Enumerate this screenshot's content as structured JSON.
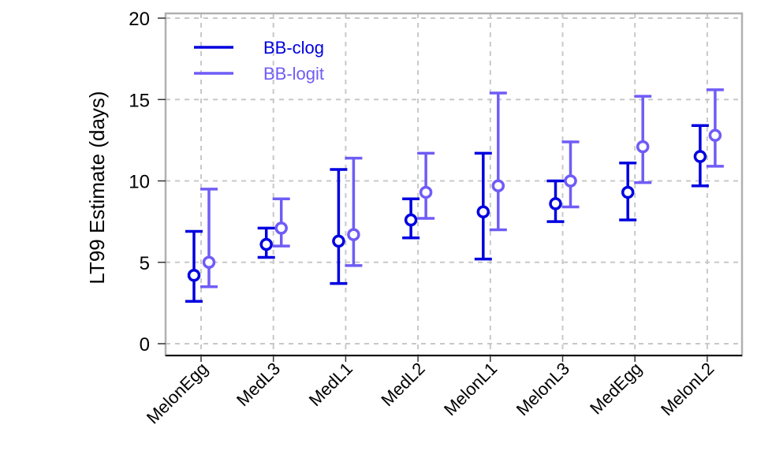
{
  "chart_data": {
    "type": "errorbar",
    "title": "",
    "xlabel": "",
    "ylabel": "LT99 Estimate (days)",
    "ylim": [
      0,
      20
    ],
    "yticks": [
      0,
      5,
      10,
      15,
      20
    ],
    "grid": true,
    "legend_position": "top-left",
    "categories": [
      "MelonEgg",
      "MedL3",
      "MedL1",
      "MedL2",
      "MelonL1",
      "MelonL3",
      "MedEgg",
      "MelonL2"
    ],
    "series": [
      {
        "name": "BB-clog",
        "color": "#0000e0",
        "values": [
          4.2,
          6.1,
          6.3,
          7.6,
          8.1,
          8.6,
          9.3,
          11.5
        ],
        "lower": [
          2.6,
          5.3,
          3.7,
          6.5,
          5.2,
          7.5,
          7.6,
          9.7
        ],
        "upper": [
          6.9,
          7.1,
          10.7,
          8.9,
          11.7,
          10.0,
          11.1,
          13.4
        ]
      },
      {
        "name": "BB-logit",
        "color": "#6f5cf6",
        "values": [
          5.0,
          7.1,
          6.7,
          9.3,
          9.7,
          10.0,
          12.1,
          12.8
        ],
        "lower": [
          3.5,
          6.0,
          4.8,
          7.7,
          7.0,
          8.4,
          9.9,
          10.9
        ],
        "upper": [
          9.5,
          8.9,
          11.4,
          11.7,
          15.4,
          12.4,
          15.2,
          15.6
        ]
      }
    ]
  }
}
